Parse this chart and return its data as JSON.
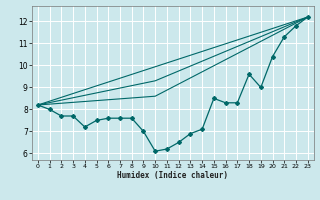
{
  "xlabel": "Humidex (Indice chaleur)",
  "bg_color": "#cce8ec",
  "grid_color": "#ffffff",
  "line_color": "#006868",
  "xlim": [
    -0.5,
    23.5
  ],
  "ylim": [
    5.7,
    12.7
  ],
  "xticks": [
    0,
    1,
    2,
    3,
    4,
    5,
    6,
    7,
    8,
    9,
    10,
    11,
    12,
    13,
    14,
    15,
    16,
    17,
    18,
    19,
    20,
    21,
    22,
    23
  ],
  "yticks": [
    6,
    7,
    8,
    9,
    10,
    11,
    12
  ],
  "line1_x": [
    0,
    1,
    2,
    3,
    4,
    5,
    6,
    7,
    8,
    9,
    10,
    11,
    12,
    13,
    14,
    15,
    16,
    17,
    18,
    19,
    20,
    21,
    22,
    23
  ],
  "line1_y": [
    8.2,
    8.0,
    7.7,
    7.7,
    7.2,
    7.5,
    7.6,
    7.6,
    7.6,
    7.0,
    6.1,
    6.2,
    6.5,
    6.9,
    7.1,
    8.5,
    8.3,
    8.3,
    9.6,
    9.0,
    10.4,
    11.3,
    11.8,
    12.2
  ],
  "line2_x": [
    0,
    23
  ],
  "line2_y": [
    8.2,
    12.2
  ],
  "line3_x": [
    0,
    23
  ],
  "line3_y": [
    8.2,
    12.2
  ],
  "line4_x": [
    0,
    23
  ],
  "line4_y": [
    8.2,
    12.2
  ],
  "fan_lines": [
    {
      "x": [
        0,
        23
      ],
      "y": [
        8.2,
        12.2
      ]
    },
    {
      "x": [
        0,
        10,
        23
      ],
      "y": [
        8.2,
        9.3,
        12.2
      ]
    },
    {
      "x": [
        0,
        10,
        23
      ],
      "y": [
        8.2,
        8.6,
        12.2
      ]
    }
  ]
}
